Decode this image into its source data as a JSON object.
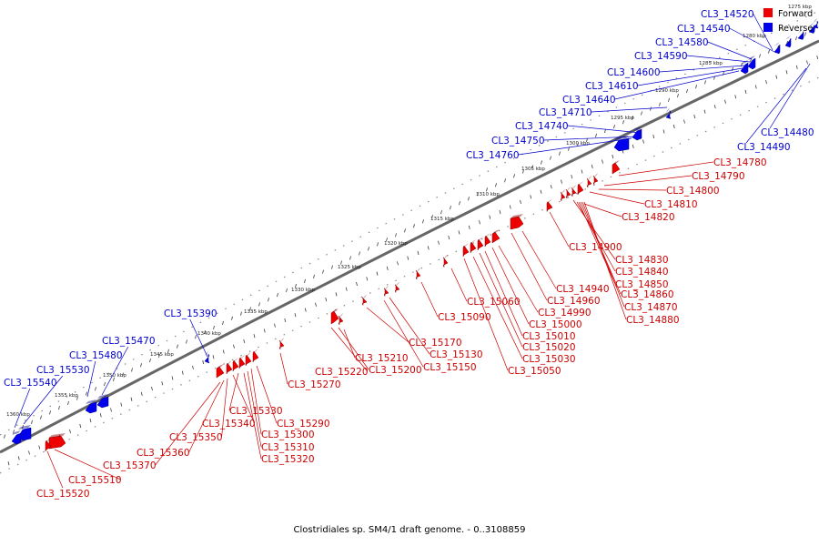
{
  "caption": "Clostridiales sp. SM4/1 draft genome. - 0..3108859",
  "legend": {
    "forward": "Forward",
    "reverse": "Reverse"
  },
  "colors": {
    "forward": "#ee0000",
    "reverse": "#0000ee",
    "axis": "#666666"
  },
  "scale_labels": [
    "1275 kbp",
    "1280 kbp",
    "1285 kbp",
    "1290 kbp",
    "1295 kbp",
    "1300 kbp",
    "1305 kbp",
    "1310 kbp",
    "1315 kbp",
    "1320 kbp",
    "1325 kbp",
    "1330 kbp",
    "1335 kbp",
    "1340 kbp",
    "1345 kbp",
    "1350 kbp",
    "1355 kbp",
    "1360 kbp"
  ],
  "genes_reverse": [
    "CL3_14520",
    "CL3_14540",
    "CL3_14580",
    "CL3_14590",
    "CL3_14600",
    "CL3_14610",
    "CL3_14640",
    "CL3_14710",
    "CL3_14740",
    "CL3_14750",
    "CL3_14760",
    "CL3_14480",
    "CL3_14490",
    "CL3_15390",
    "CL3_15470",
    "CL3_15480",
    "CL3_15530",
    "CL3_15540"
  ],
  "genes_forward": [
    "CL3_14780",
    "CL3_14790",
    "CL3_14800",
    "CL3_14810",
    "CL3_14820",
    "CL3_14900",
    "CL3_14830",
    "CL3_14840",
    "CL3_14850",
    "CL3_14860",
    "CL3_14870",
    "CL3_14880",
    "CL3_14940",
    "CL3_14960",
    "CL3_14990",
    "CL3_15000",
    "CL3_15010",
    "CL3_15020",
    "CL3_15030",
    "CL3_15050",
    "CL3_15060",
    "CL3_15090",
    "CL3_15130",
    "CL3_15150",
    "CL3_15170",
    "CL3_15210",
    "CL3_15200",
    "CL3_15220",
    "CL3_15270",
    "CL3_15290",
    "CL3_15300",
    "CL3_15310",
    "CL3_15320",
    "CL3_15330",
    "CL3_15340",
    "CL3_15350",
    "CL3_15360",
    "CL3_15370",
    "CL3_15510",
    "CL3_15520"
  ]
}
